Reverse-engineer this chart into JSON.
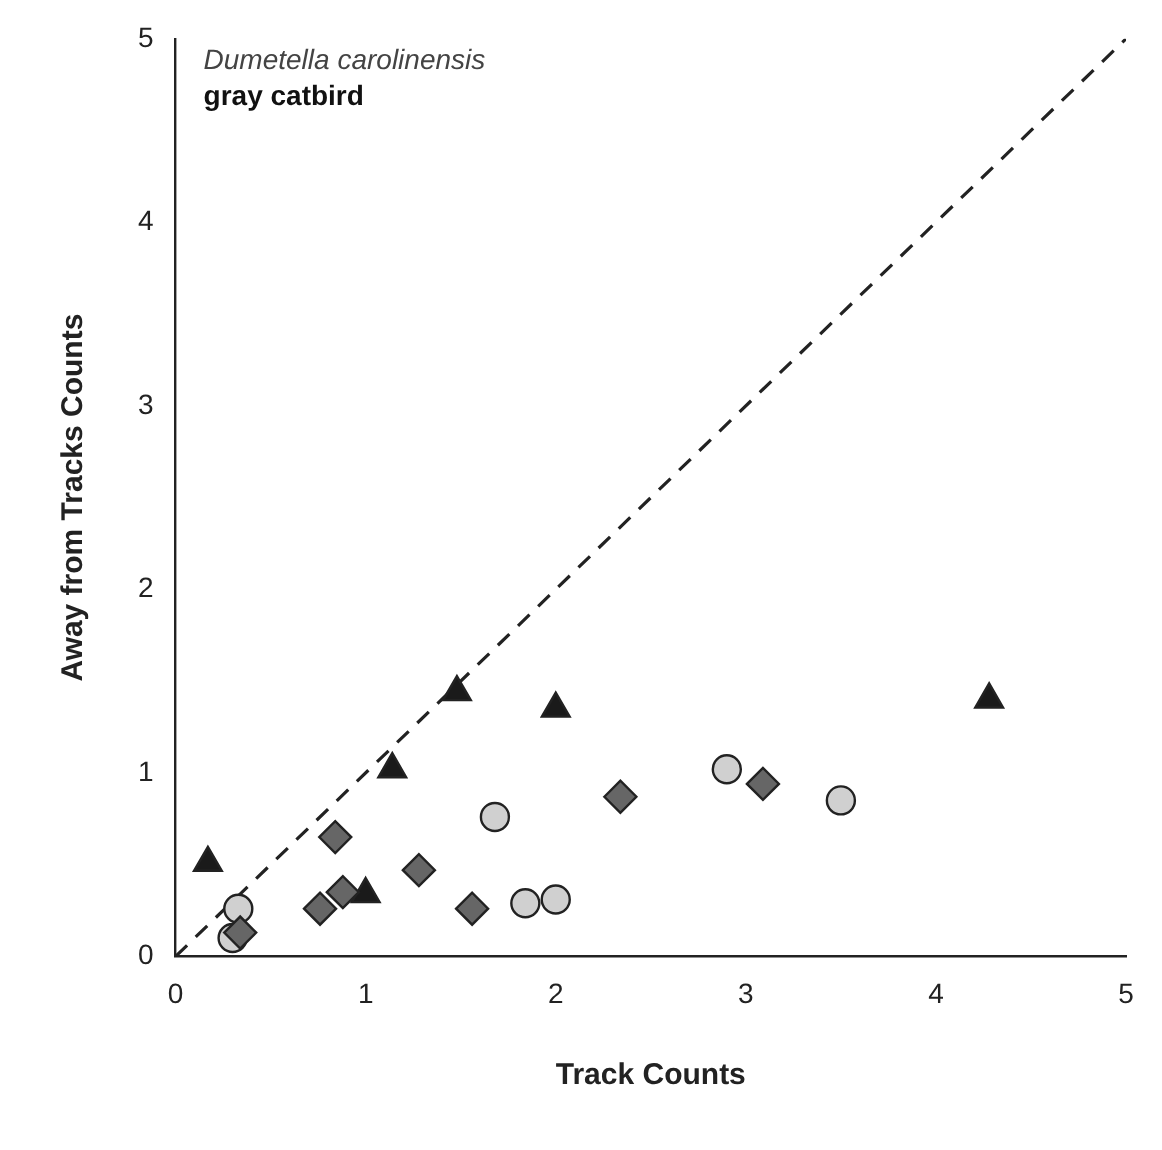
{
  "chart_data": {
    "type": "scatter",
    "xlabel": "Track Counts",
    "ylabel": "Away from Tracks Counts",
    "annotations": [
      "Dumetella carolinensis",
      "gray catbird"
    ],
    "xlim": [
      0,
      5
    ],
    "ylim": [
      0,
      5
    ],
    "xticks": [
      0,
      1,
      2,
      3,
      4,
      5
    ],
    "yticks": [
      0,
      1,
      2,
      3,
      4,
      5
    ],
    "grid": false,
    "legend": false,
    "series": [
      {
        "type": "line",
        "color": "#222222",
        "line_style": "dashed",
        "marker": "none",
        "x": [
          0,
          5
        ],
        "values": [
          0,
          5
        ]
      },
      {
        "color": "#1a1a1a",
        "marker": "triangle",
        "x": [
          0.17,
          1.0,
          1.14,
          1.48,
          2.0,
          4.28
        ],
        "values": [
          0.51,
          0.34,
          1.02,
          1.44,
          1.35,
          1.4
        ]
      },
      {
        "color": "#d0d0d0",
        "marker": "circle",
        "x": [
          0.3,
          0.33,
          1.68,
          1.84,
          2.0,
          2.9,
          3.5
        ],
        "values": [
          0.1,
          0.26,
          0.76,
          0.29,
          0.31,
          1.02,
          0.85
        ]
      },
      {
        "color": "#666666",
        "marker": "diamond",
        "x": [
          0.34,
          0.76,
          0.84,
          0.88,
          1.28,
          1.56,
          2.34,
          3.09
        ],
        "values": [
          0.13,
          0.26,
          0.65,
          0.35,
          0.47,
          0.26,
          0.87,
          0.94
        ]
      }
    ]
  }
}
